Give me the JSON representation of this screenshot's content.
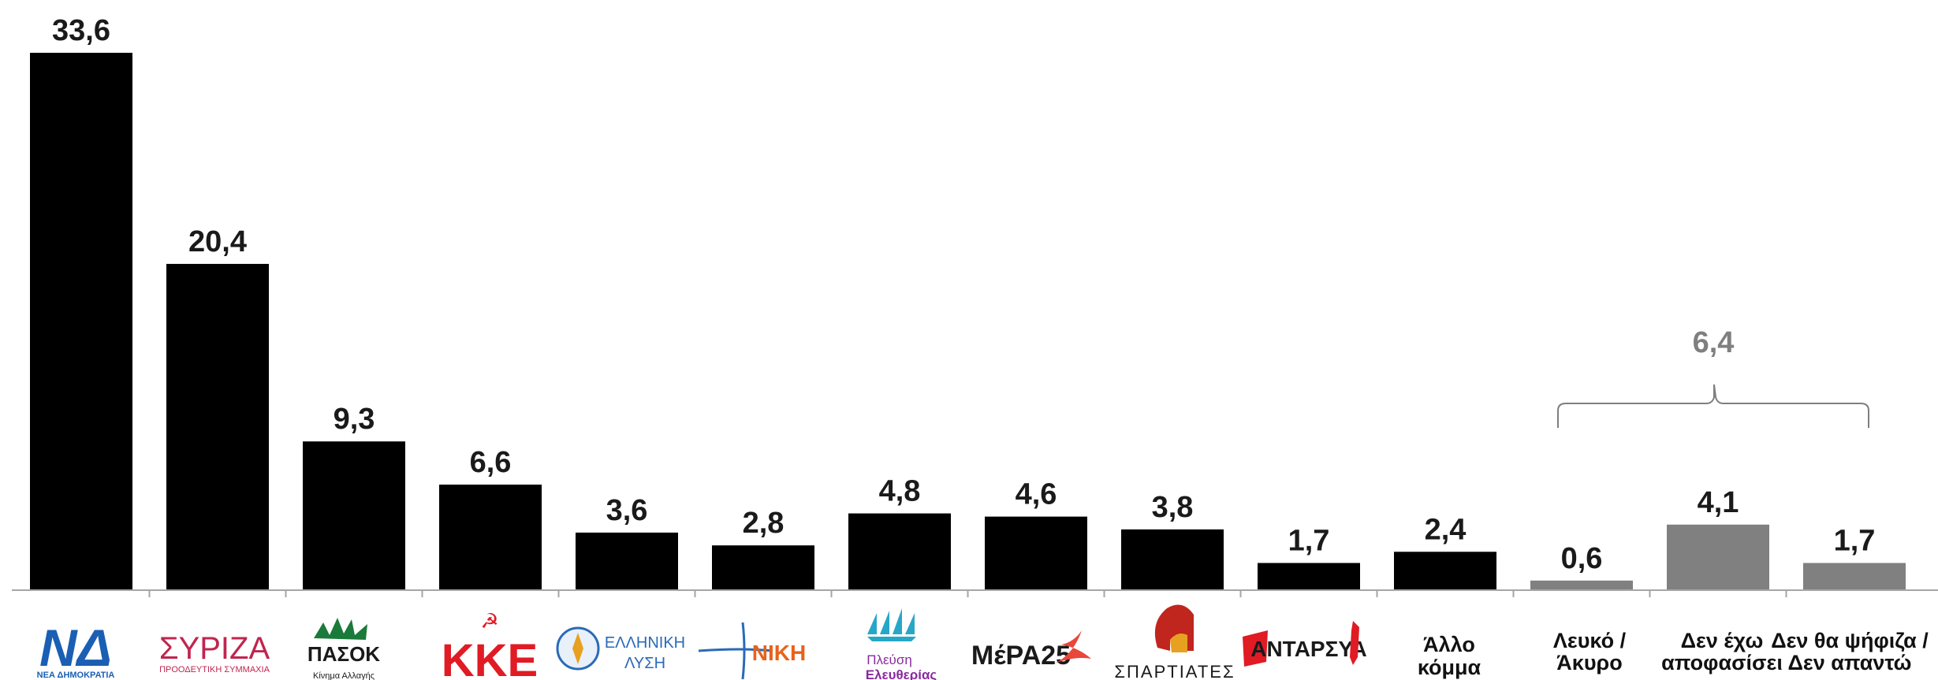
{
  "chart_data": {
    "type": "bar",
    "categories": [
      "ΝΔ",
      "ΣΥΡΙΖΑ",
      "ΠΑΣΟΚ",
      "ΚΚΕ",
      "ΕΛΛΗΝΙΚΗ ΛΥΣΗ",
      "ΝΙΚΗ",
      "Πλεύση Ελευθερίας",
      "ΜέΡΑ25",
      "ΣΠΑΡΤΙΑΤΕΣ",
      "ΑΝΤΑΡΣΥΑ",
      "Άλλο κόμμα",
      "Λευκό / Άκυρο",
      "Δεν έχω αποφασίσει",
      "Δεν θα ψήφιζα / Δεν απαντώ"
    ],
    "values": [
      33.6,
      20.4,
      9.3,
      6.6,
      3.6,
      2.8,
      4.8,
      4.6,
      3.8,
      1.7,
      2.4,
      0.6,
      4.1,
      1.7
    ],
    "value_labels": [
      "33,6",
      "20,4",
      "9,3",
      "6,6",
      "3,6",
      "2,8",
      "4,8",
      "4,6",
      "3,8",
      "1,7",
      "2,4",
      "0,6",
      "4,1",
      "1,7"
    ],
    "bar_colors": [
      "#000000",
      "#000000",
      "#000000",
      "#000000",
      "#000000",
      "#000000",
      "#000000",
      "#000000",
      "#000000",
      "#000000",
      "#000000",
      "#808080",
      "#808080",
      "#808080"
    ],
    "ylim": [
      0,
      34
    ],
    "grid": false,
    "bracket": {
      "categories": [
        11,
        12,
        13
      ],
      "label": "6,4",
      "color": "#7f7f7f"
    }
  },
  "logos": {
    "nd": {
      "main": "ΝΔ",
      "sub": "ΝΕΑ ΔΗΜΟΚΡΑΤΙΑ",
      "color": "#1a5fb4"
    },
    "syriza": {
      "main": "ΣΥΡΙΖΑ",
      "sub": "ΠΡΟΟΔΕΥΤΙΚΗ ΣΥΜΜΑΧΙΑ",
      "color": "#c0254f"
    },
    "pasok": {
      "main": "ΠΑΣΟΚ",
      "sub": "Κίνημα Αλλαγής",
      "color": "#1a7a3a"
    },
    "kke": {
      "main": "ΚΚΕ",
      "color": "#e01b24"
    },
    "elliniki_lysi": {
      "line1": "ΕΛΛΗΝΙΚΗ",
      "line2": "ΛΥΣΗ",
      "color": "#2a6ab8"
    },
    "niki": {
      "main": "ΝΙΚΗ",
      "color": "#e8621a",
      "accent": "#2a6ab8"
    },
    "plefsi": {
      "line1": "Πλεύση",
      "line2": "Ελευθερίας",
      "color": "#8a2a9e",
      "accent": "#27a7c8"
    },
    "mera25": {
      "main": "ΜέΡΑ25",
      "sub": "ΜέΡΑ25",
      "color": "#1a1a1a",
      "accent": "#e8473a"
    },
    "spartiates": {
      "main": "ΣΠΑΡΤΙΑΤΕΣ",
      "color": "#1a1a1a",
      "accent": "#c0251e"
    },
    "antarsya": {
      "main": "ΑΝΤΑΡΣΥΑ",
      "color": "#1a1a1a",
      "accent": "#e01b24"
    }
  },
  "text_labels": {
    "allo_komma": [
      "Άλλο",
      "κόμμα"
    ],
    "lefko": [
      "Λευκό /",
      "Άκυρο"
    ],
    "den_exo": [
      "Δεν έχω",
      "αποφασίσει"
    ],
    "den_tha": [
      "Δεν θα ψήφιζα /",
      "Δεν απαντώ"
    ]
  }
}
